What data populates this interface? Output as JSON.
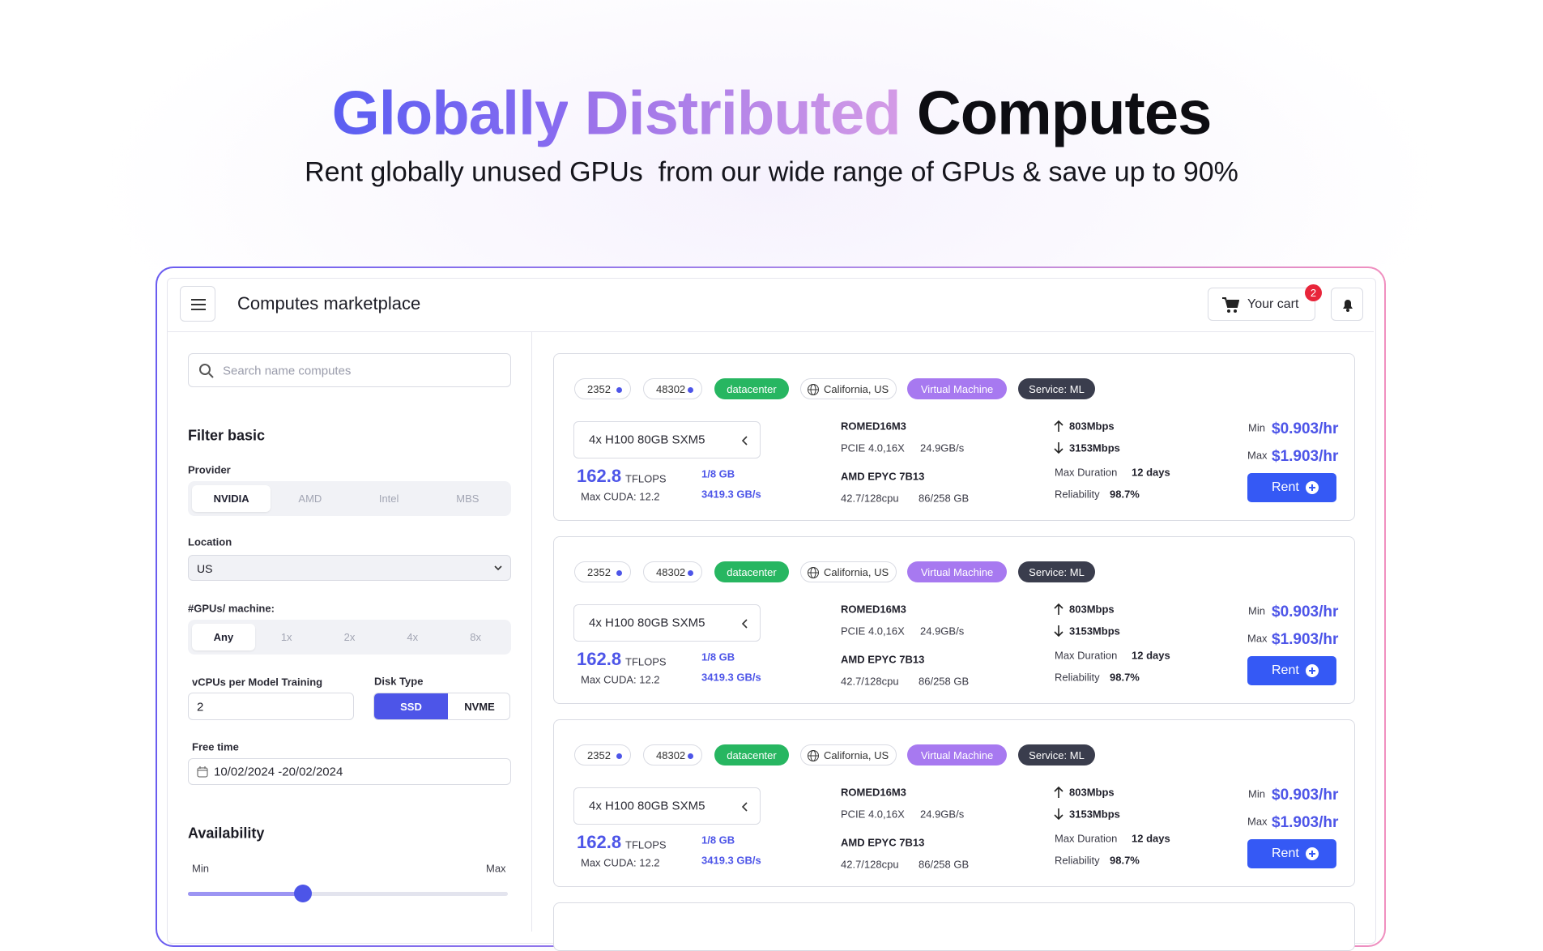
{
  "hero": {
    "title_highlight": [
      "Globally",
      "Distributed"
    ],
    "title_rest": "Computes",
    "subtitle": "Rent globally unused GPUs  from our wide range of GPUs & save up to 90%"
  },
  "header": {
    "title": "Computes marketplace",
    "cart": "Your cart",
    "cart_count": "2"
  },
  "sidebar": {
    "search_placeholder": "Search name computes",
    "filter_title": "Filter basic",
    "provider_label": "Provider",
    "providers": [
      "NVIDIA",
      "AMD",
      "Intel",
      "MBS"
    ],
    "location_label": "Location",
    "location": "US",
    "gpus_label": "#GPUs/ machine:",
    "gpus": [
      "Any",
      "1x",
      "2x",
      "4x",
      "8x"
    ],
    "vcpu_label": "vCPUs per Model Training",
    "vcpu": "2",
    "disk_label": "Disk Type",
    "disks": [
      "SSD",
      "NVME"
    ],
    "free_time_label": "Free time",
    "free_time": "10/02/2024 -20/02/2024",
    "availability_title": "Availability",
    "min_label": "Min",
    "max_label": "Max"
  },
  "cards": [
    {
      "tags": [
        "2352",
        "48302",
        "datacenter",
        "California, US",
        "Virtual Machine",
        "Service: ML"
      ],
      "gpu": "4x H100 80GB SXM5",
      "tflops": "162.8",
      "tflops_unit": "TFLOPS",
      "cuda": "Max CUDA: 12.2",
      "memory": "1/8 GB",
      "bandwidth": "3419.3 GB/s",
      "board": "ROMED16M3",
      "pcie": "PCIE 4.0,16X",
      "pcie_speed": "24.9GB/s",
      "cpu": "AMD EPYC 7B13",
      "cpu_usage": "42.7/128cpu",
      "ram": "86/258 GB",
      "upload": "803Mbps",
      "download": "3153Mbps",
      "duration_label": "Max Duration",
      "duration": "12 days",
      "reliability_label": "Reliability",
      "reliability": "98.7%",
      "min_label": "Min",
      "min_price": "$0.903/hr",
      "max_label": "Max",
      "max_price": "$1.903/hr",
      "action": "Rent"
    },
    {
      "tags": [
        "2352",
        "48302",
        "datacenter",
        "California, US",
        "Virtual Machine",
        "Service: ML"
      ],
      "gpu": "4x H100 80GB SXM5",
      "tflops": "162.8",
      "tflops_unit": "TFLOPS",
      "cuda": "Max CUDA: 12.2",
      "memory": "1/8 GB",
      "bandwidth": "3419.3 GB/s",
      "board": "ROMED16M3",
      "pcie": "PCIE 4.0,16X",
      "pcie_speed": "24.9GB/s",
      "cpu": "AMD EPYC 7B13",
      "cpu_usage": "42.7/128cpu",
      "ram": "86/258 GB",
      "upload": "803Mbps",
      "download": "3153Mbps",
      "duration_label": "Max Duration",
      "duration": "12 days",
      "reliability_label": "Reliability",
      "reliability": "98.7%",
      "min_label": "Min",
      "min_price": "$0.903/hr",
      "max_label": "Max",
      "max_price": "$1.903/hr",
      "action": "Rent"
    },
    {
      "tags": [
        "2352",
        "48302",
        "datacenter",
        "California, US",
        "Virtual Machine",
        "Service: ML"
      ],
      "gpu": "4x H100 80GB SXM5",
      "tflops": "162.8",
      "tflops_unit": "TFLOPS",
      "cuda": "Max CUDA: 12.2",
      "memory": "1/8 GB",
      "bandwidth": "3419.3 GB/s",
      "board": "ROMED16M3",
      "pcie": "PCIE 4.0,16X",
      "pcie_speed": "24.9GB/s",
      "cpu": "AMD EPYC 7B13",
      "cpu_usage": "42.7/128cpu",
      "ram": "86/258 GB",
      "upload": "803Mbps",
      "download": "3153Mbps",
      "duration_label": "Max Duration",
      "duration": "12 days",
      "reliability_label": "Reliability",
      "reliability": "98.7%",
      "min_label": "Min",
      "min_price": "$0.903/hr",
      "max_label": "Max",
      "max_price": "$1.903/hr",
      "action": "Rent"
    }
  ]
}
